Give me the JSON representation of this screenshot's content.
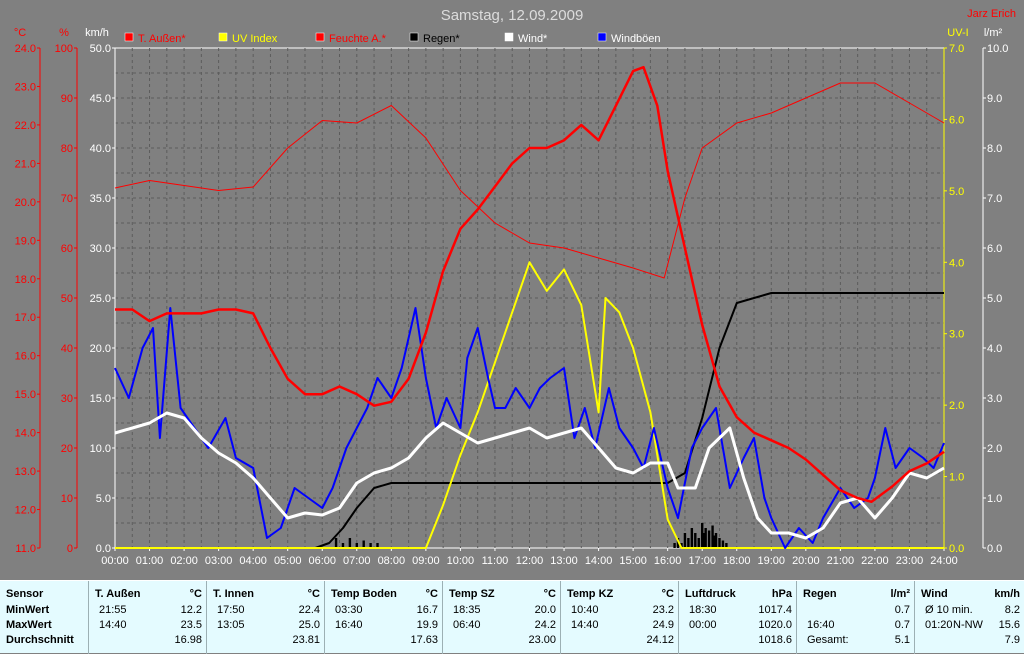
{
  "chart_data": {
    "type": "line",
    "title": "Samstag, 12.09.2009",
    "author": "Jarz Erich",
    "x_ticks": [
      "00:00",
      "01:00",
      "02:00",
      "03:00",
      "04:00",
      "05:00",
      "06:00",
      "07:00",
      "08:00",
      "09:00",
      "10:00",
      "11:00",
      "12:00",
      "13:00",
      "14:00",
      "15:00",
      "16:00",
      "17:00",
      "18:00",
      "19:00",
      "20:00",
      "21:00",
      "22:00",
      "23:00",
      "24:00"
    ],
    "axes": {
      "temp": {
        "unit": "°C",
        "range": [
          11.0,
          24.0
        ],
        "ticks": [
          "11.0",
          "12.0",
          "13.0",
          "14.0",
          "15.0",
          "16.0",
          "17.0",
          "18.0",
          "19.0",
          "20.0",
          "21.0",
          "22.0",
          "23.0",
          "24.0"
        ]
      },
      "hum": {
        "unit": "%",
        "range": [
          0,
          100
        ],
        "ticks": [
          "0",
          "10",
          "20",
          "30",
          "40",
          "50",
          "60",
          "70",
          "80",
          "90",
          "100"
        ]
      },
      "wind": {
        "unit": "km/h",
        "range": [
          0,
          50
        ],
        "ticks": [
          "0.0",
          "5.0",
          "10.0",
          "15.0",
          "20.0",
          "25.0",
          "30.0",
          "35.0",
          "40.0",
          "45.0",
          "50.0"
        ]
      },
      "uv": {
        "unit": "UV-I",
        "range": [
          0,
          7
        ],
        "ticks": [
          "0.0",
          "1.0",
          "2.0",
          "3.0",
          "4.0",
          "5.0",
          "6.0",
          "7.0"
        ]
      },
      "rain": {
        "unit": "l/m²",
        "range": [
          0,
          10
        ],
        "ticks": [
          "0.0",
          "1.0",
          "2.0",
          "3.0",
          "4.0",
          "5.0",
          "6.0",
          "7.0",
          "8.0",
          "9.0",
          "10.0"
        ]
      }
    },
    "grid": true,
    "legend": [
      {
        "name": "T. Außen*",
        "color": "#ff0000",
        "text_color": "#ff0000"
      },
      {
        "name": "UV Index",
        "color": "#ffff00",
        "text_color": "#ffff00"
      },
      {
        "name": "Feuchte A.*",
        "color": "#ff0000",
        "text_color": "#ff0000"
      },
      {
        "name": "Regen*",
        "color": "#000000",
        "text_color": "#000000"
      },
      {
        "name": "Wind*",
        "color": "#ffffff",
        "text_color": "#ffffff"
      },
      {
        "name": "Windböen",
        "color": "#0000ff",
        "text_color": "#ffffff"
      }
    ],
    "series": [
      {
        "name": "T. Außen*",
        "axis": "temp",
        "color": "#ff0000",
        "width": 2.5,
        "points": [
          [
            0,
            17.2
          ],
          [
            0.5,
            17.2
          ],
          [
            1,
            16.9
          ],
          [
            1.5,
            17.1
          ],
          [
            2,
            17.1
          ],
          [
            2.5,
            17.1
          ],
          [
            3,
            17.2
          ],
          [
            3.5,
            17.2
          ],
          [
            4,
            17.1
          ],
          [
            4.5,
            16.2
          ],
          [
            5,
            15.4
          ],
          [
            5.5,
            15.0
          ],
          [
            6,
            15.0
          ],
          [
            6.5,
            15.2
          ],
          [
            7,
            15.0
          ],
          [
            7.5,
            14.7
          ],
          [
            8,
            14.8
          ],
          [
            8.5,
            15.4
          ],
          [
            9,
            16.6
          ],
          [
            9.5,
            18.2
          ],
          [
            10,
            19.3
          ],
          [
            10.5,
            19.8
          ],
          [
            11,
            20.4
          ],
          [
            11.5,
            21.0
          ],
          [
            12,
            21.4
          ],
          [
            12.5,
            21.4
          ],
          [
            13,
            21.6
          ],
          [
            13.5,
            22.0
          ],
          [
            14,
            21.6
          ],
          [
            14.5,
            22.5
          ],
          [
            15,
            23.4
          ],
          [
            15.3,
            23.5
          ],
          [
            15.7,
            22.5
          ],
          [
            16,
            20.8
          ],
          [
            16.5,
            18.8
          ],
          [
            17,
            16.8
          ],
          [
            17.5,
            15.2
          ],
          [
            18,
            14.4
          ],
          [
            18.5,
            14.0
          ],
          [
            19,
            13.8
          ],
          [
            19.5,
            13.6
          ],
          [
            20,
            13.3
          ],
          [
            20.5,
            12.9
          ],
          [
            21,
            12.5
          ],
          [
            21.5,
            12.3
          ],
          [
            21.9,
            12.2
          ],
          [
            22.5,
            12.6
          ],
          [
            23,
            13.0
          ],
          [
            23.5,
            13.2
          ],
          [
            24,
            13.5
          ]
        ]
      },
      {
        "name": "Feuchte A.*",
        "axis": "hum",
        "color": "#ff0000",
        "width": 1,
        "points": [
          [
            0,
            72
          ],
          [
            1,
            73.5
          ],
          [
            2,
            72.5
          ],
          [
            3,
            71.5
          ],
          [
            4,
            72.2
          ],
          [
            5,
            80
          ],
          [
            6,
            85.5
          ],
          [
            7,
            85
          ],
          [
            8,
            88.5
          ],
          [
            9,
            82
          ],
          [
            10,
            71.5
          ],
          [
            11,
            65
          ],
          [
            12,
            61
          ],
          [
            13,
            60
          ],
          [
            14,
            58
          ],
          [
            15,
            56
          ],
          [
            15.9,
            54
          ],
          [
            16.5,
            70
          ],
          [
            17,
            80
          ],
          [
            18,
            85
          ],
          [
            19,
            87
          ],
          [
            20,
            90
          ],
          [
            21,
            93
          ],
          [
            22,
            93
          ],
          [
            23,
            89
          ],
          [
            24,
            85
          ]
        ]
      },
      {
        "name": "Regen*",
        "axis": "rain",
        "color": "#000000",
        "width": 2,
        "points": [
          [
            0,
            0
          ],
          [
            5.8,
            0
          ],
          [
            6.2,
            0.1
          ],
          [
            6.6,
            0.4
          ],
          [
            7,
            0.8
          ],
          [
            7.5,
            1.2
          ],
          [
            8,
            1.3
          ],
          [
            9,
            1.3
          ],
          [
            10,
            1.3
          ],
          [
            11,
            1.3
          ],
          [
            12,
            1.3
          ],
          [
            13,
            1.3
          ],
          [
            14,
            1.3
          ],
          [
            15,
            1.3
          ],
          [
            16,
            1.3
          ],
          [
            16.5,
            1.5
          ],
          [
            17,
            2.6
          ],
          [
            17.5,
            4.0
          ],
          [
            18,
            4.9
          ],
          [
            18.5,
            5.0
          ],
          [
            19,
            5.1
          ],
          [
            20,
            5.1
          ],
          [
            22,
            5.1
          ],
          [
            24,
            5.1
          ]
        ]
      },
      {
        "name": "UV Index",
        "axis": "uv",
        "color": "#ffff00",
        "width": 2,
        "points": [
          [
            0,
            0
          ],
          [
            9,
            0
          ],
          [
            9.5,
            0.6
          ],
          [
            10,
            1.3
          ],
          [
            10.5,
            1.9
          ],
          [
            11,
            2.6
          ],
          [
            11.5,
            3.3
          ],
          [
            12,
            4.0
          ],
          [
            12.5,
            3.6
          ],
          [
            13,
            3.9
          ],
          [
            13.5,
            3.4
          ],
          [
            14,
            1.9
          ],
          [
            14.2,
            3.5
          ],
          [
            14.6,
            3.3
          ],
          [
            15,
            2.8
          ],
          [
            15.5,
            1.9
          ],
          [
            16,
            0.4
          ],
          [
            16.4,
            0
          ],
          [
            24,
            0
          ]
        ]
      },
      {
        "name": "Wind*",
        "axis": "wind",
        "color": "#ffffff",
        "width": 3,
        "points": [
          [
            0,
            11.5
          ],
          [
            0.5,
            12
          ],
          [
            1,
            12.5
          ],
          [
            1.5,
            13.5
          ],
          [
            2,
            13
          ],
          [
            2.5,
            11
          ],
          [
            3,
            9.5
          ],
          [
            3.5,
            8.5
          ],
          [
            4,
            7
          ],
          [
            4.5,
            5
          ],
          [
            5,
            3
          ],
          [
            5.5,
            3.5
          ],
          [
            6,
            3.3
          ],
          [
            6.5,
            4
          ],
          [
            7,
            6.5
          ],
          [
            7.5,
            7.5
          ],
          [
            8,
            8
          ],
          [
            8.5,
            9
          ],
          [
            9,
            11
          ],
          [
            9.5,
            12.5
          ],
          [
            10,
            11.5
          ],
          [
            10.5,
            10.5
          ],
          [
            11,
            11
          ],
          [
            11.5,
            11.5
          ],
          [
            12,
            12
          ],
          [
            12.5,
            11
          ],
          [
            13,
            11.5
          ],
          [
            13.5,
            12
          ],
          [
            14,
            10
          ],
          [
            14.5,
            8
          ],
          [
            15,
            7.5
          ],
          [
            15.5,
            8.5
          ],
          [
            16,
            8.5
          ],
          [
            16.3,
            6
          ],
          [
            16.8,
            6
          ],
          [
            17.2,
            10
          ],
          [
            17.8,
            12
          ],
          [
            18.2,
            7
          ],
          [
            18.6,
            3
          ],
          [
            19,
            1.5
          ],
          [
            19.5,
            1.5
          ],
          [
            20,
            1
          ],
          [
            20.5,
            2
          ],
          [
            21,
            4.5
          ],
          [
            21.5,
            5
          ],
          [
            22,
            3
          ],
          [
            22.5,
            5
          ],
          [
            23,
            7.5
          ],
          [
            23.5,
            7
          ],
          [
            24,
            8
          ]
        ]
      }
    ],
    "gusts": {
      "name": "Windböen",
      "axis": "wind",
      "color": "#0000ff",
      "points": [
        [
          0,
          18
        ],
        [
          0.4,
          15
        ],
        [
          0.8,
          20
        ],
        [
          1.1,
          22
        ],
        [
          1.3,
          11
        ],
        [
          1.6,
          24
        ],
        [
          1.9,
          14
        ],
        [
          2.3,
          12
        ],
        [
          2.7,
          10
        ],
        [
          3.2,
          13
        ],
        [
          3.5,
          9
        ],
        [
          4,
          8
        ],
        [
          4.4,
          1
        ],
        [
          4.8,
          2
        ],
        [
          5.2,
          6
        ],
        [
          5.6,
          5
        ],
        [
          6,
          4
        ],
        [
          6.3,
          6
        ],
        [
          6.7,
          10
        ],
        [
          7,
          12
        ],
        [
          7.3,
          14
        ],
        [
          7.6,
          17
        ],
        [
          8,
          15
        ],
        [
          8.3,
          18
        ],
        [
          8.7,
          24
        ],
        [
          9,
          17
        ],
        [
          9.3,
          12
        ],
        [
          9.6,
          15
        ],
        [
          10,
          12
        ],
        [
          10.2,
          19
        ],
        [
          10.5,
          22
        ],
        [
          10.8,
          17
        ],
        [
          11,
          14
        ],
        [
          11.3,
          14
        ],
        [
          11.6,
          16
        ],
        [
          12,
          14
        ],
        [
          12.3,
          16
        ],
        [
          12.6,
          17
        ],
        [
          13,
          18
        ],
        [
          13.3,
          11
        ],
        [
          13.6,
          14
        ],
        [
          13.9,
          10
        ],
        [
          14.3,
          16
        ],
        [
          14.6,
          12
        ],
        [
          15,
          10
        ],
        [
          15.3,
          8
        ],
        [
          15.6,
          12
        ],
        [
          16,
          6
        ],
        [
          16.3,
          3
        ],
        [
          16.7,
          10
        ],
        [
          17,
          12
        ],
        [
          17.4,
          14
        ],
        [
          17.8,
          6
        ],
        [
          18.2,
          9
        ],
        [
          18.5,
          11
        ],
        [
          18.8,
          5
        ],
        [
          19,
          3
        ],
        [
          19.4,
          0
        ],
        [
          19.8,
          2
        ],
        [
          20.2,
          0.5
        ],
        [
          20.5,
          3
        ],
        [
          21,
          6
        ],
        [
          21.4,
          4
        ],
        [
          21.8,
          5
        ],
        [
          22,
          7
        ],
        [
          22.3,
          12
        ],
        [
          22.6,
          8
        ],
        [
          23,
          10
        ],
        [
          23.4,
          9
        ],
        [
          23.7,
          8
        ],
        [
          24,
          10.5
        ]
      ]
    },
    "rain_bars": {
      "name": "Regen",
      "axis": "rain",
      "points": [
        [
          6.4,
          0.2
        ],
        [
          6.6,
          0.1
        ],
        [
          6.8,
          0.2
        ],
        [
          7,
          0.1
        ],
        [
          7.2,
          0.15
        ],
        [
          7.4,
          0.1
        ],
        [
          7.6,
          0.1
        ],
        [
          16.2,
          0.1
        ],
        [
          16.3,
          0.2
        ],
        [
          16.4,
          0.1
        ],
        [
          16.5,
          0.3
        ],
        [
          16.6,
          0.2
        ],
        [
          16.7,
          0.4
        ],
        [
          16.8,
          0.3
        ],
        [
          16.9,
          0.2
        ],
        [
          17,
          0.5
        ],
        [
          17.05,
          0.3
        ],
        [
          17.1,
          0.4
        ],
        [
          17.2,
          0.35
        ],
        [
          17.3,
          0.45
        ],
        [
          17.35,
          0.25
        ],
        [
          17.4,
          0.3
        ],
        [
          17.5,
          0.2
        ],
        [
          17.6,
          0.15
        ],
        [
          17.7,
          0.1
        ]
      ]
    }
  },
  "stats": {
    "sensor": {
      "header": "Sensor",
      "rows": [
        "MinWert",
        "MaxWert",
        "Durchschnitt"
      ]
    },
    "columns": [
      {
        "name": "T. Außen",
        "unit": "°C",
        "min_time": "21:55",
        "min": "12.2",
        "max_time": "14:40",
        "max": "23.5",
        "avg": "16.98"
      },
      {
        "name": "T. Innen",
        "unit": "°C",
        "min_time": "17:50",
        "min": "22.4",
        "max_time": "13:05",
        "max": "25.0",
        "avg": "23.81"
      },
      {
        "name": "Temp Boden",
        "unit": "°C",
        "min_time": "03:30",
        "min": "16.7",
        "max_time": "16:40",
        "max": "19.9",
        "avg": "17.63"
      },
      {
        "name": "Temp SZ",
        "unit": "°C",
        "min_time": "18:35",
        "min": "20.0",
        "max_time": "06:40",
        "max": "24.2",
        "avg": "23.00"
      },
      {
        "name": "Temp KZ",
        "unit": "°C",
        "min_time": "10:40",
        "min": "23.2",
        "max_time": "14:40",
        "max": "24.9",
        "avg": "24.12"
      },
      {
        "name": "Luftdruck",
        "unit": "hPa",
        "min_time": "18:30",
        "min": "1017.4",
        "max_time": "00:00",
        "max": "1020.0",
        "avg": "1018.6"
      },
      {
        "name": "Regen",
        "unit": "l/m²",
        "min_time": "",
        "min": "0.7",
        "max_time": "16:40",
        "max": "0.7",
        "avg_label": "Gesamt:",
        "avg": "5.1"
      },
      {
        "name": "Wind",
        "unit": "km/h",
        "min_time": "Ø 10 min.",
        "min": "8.2",
        "max_time": "01:20",
        "max_dir": "N-NW",
        "max": "15.6",
        "avg": "7.9"
      }
    ]
  }
}
